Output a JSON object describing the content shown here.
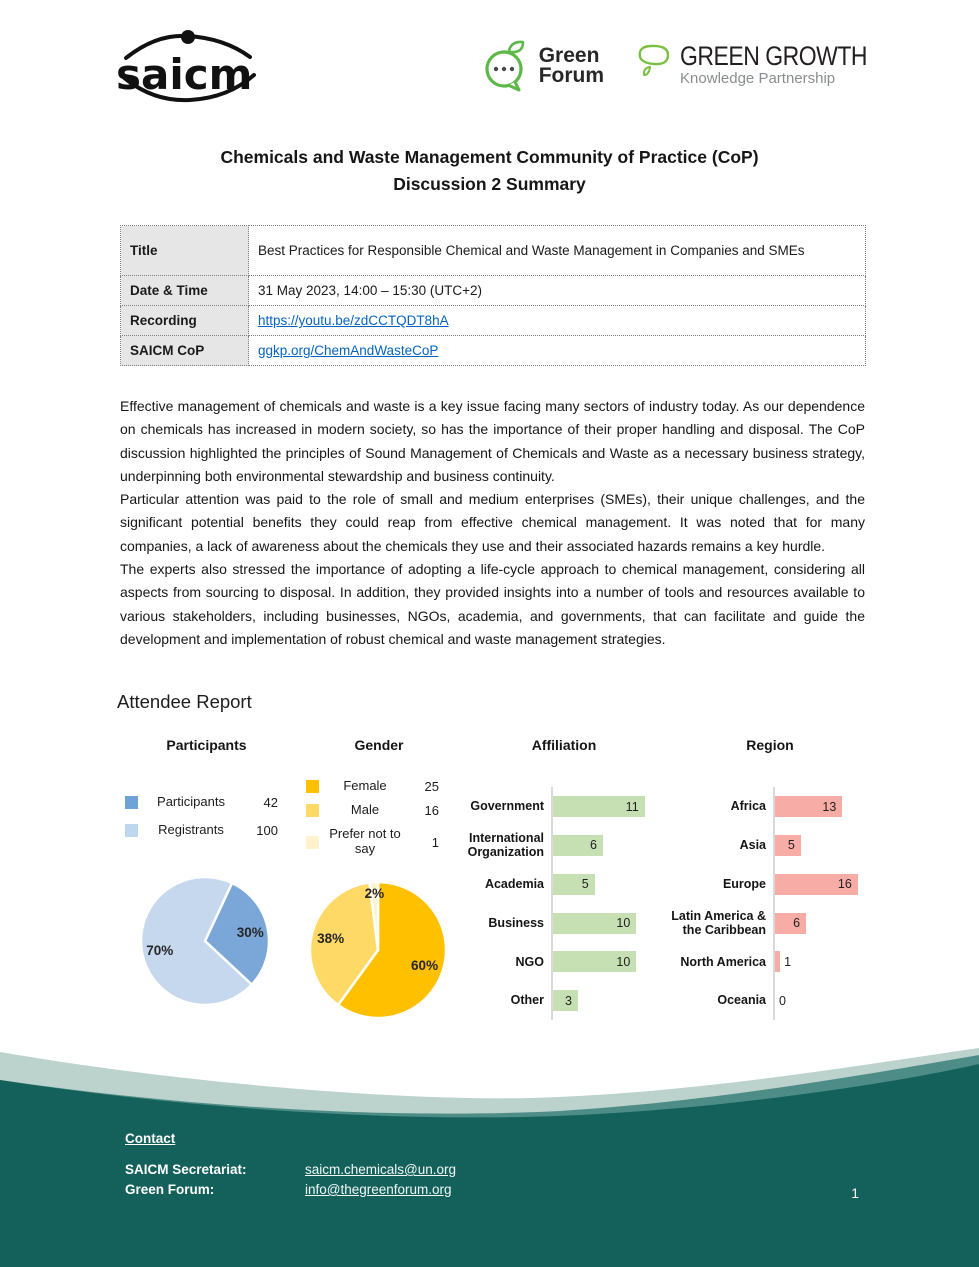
{
  "header": {
    "logos": {
      "saicm": "saicm",
      "green_forum_line1": "Green",
      "green_forum_line2": "Forum",
      "ggkp_title": "GREEN GROWTH",
      "ggkp_subtitle": "Knowledge Partnership"
    }
  },
  "title": {
    "line1": "Chemicals and Waste Management Community of Practice (CoP)",
    "line2": "Discussion 2 Summary"
  },
  "info_table": {
    "rows": [
      {
        "label": "Title",
        "value": "Best Practices for Responsible Chemical and Waste Management in Companies and SMEs"
      },
      {
        "label": "Date & Time",
        "value": "31 May 2023, 14:00 – 15:30 (UTC+2)"
      },
      {
        "label": "Recording",
        "value": "https://youtu.be/zdCCTQDT8hA"
      },
      {
        "label": "SAICM CoP",
        "value": "ggkp.org/ChemAndWasteCoP"
      }
    ]
  },
  "body": {
    "paragraphs": [
      "Effective management of chemicals and waste is a key issue facing many sectors of industry today. As our dependence on chemicals has increased in modern society, so has the importance of their proper handling and disposal. The CoP discussion highlighted the principles of Sound Management of Chemicals and Waste as a necessary business strategy, underpinning both environmental stewardship and business continuity.",
      "Particular attention was paid to the role of small and medium enterprises (SMEs), their unique challenges, and the significant potential benefits they could reap from effective chemical management. It was noted that for many companies, a lack of awareness about the chemicals they use and their associated hazards remains a key hurdle.",
      "The experts also stressed the importance of adopting a life-cycle approach to chemical management, considering all aspects from sourcing to disposal. In addition, they provided insights into a number of tools and resources available to various stakeholders, including businesses, NGOs, academia, and governments, that can facilitate and guide the development and implementation of robust chemical and waste management strategies."
    ]
  },
  "attendee_report": {
    "heading": "Attendee Report"
  },
  "chart_data": [
    {
      "type": "pie",
      "title": "Participants",
      "legend": [
        {
          "label": "Participants",
          "value": 42,
          "color": "#6fa3d8"
        },
        {
          "label": "Registrants",
          "value": 100,
          "color": "#bdd7ee"
        }
      ],
      "slices": [
        {
          "label": "30%",
          "pct": 30,
          "color": "#7aa7d8"
        },
        {
          "label": "70%",
          "pct": 70,
          "color": "#c5d8ee"
        }
      ],
      "start_angle": 25
    },
    {
      "type": "pie",
      "title": "Gender",
      "legend": [
        {
          "label": "Female",
          "value": 25,
          "color": "#ffc000"
        },
        {
          "label": "Male",
          "value": 16,
          "color": "#ffd966"
        },
        {
          "label": "Prefer not to say",
          "value": 1,
          "color": "#fff2cc"
        }
      ],
      "slices": [
        {
          "label": "60%",
          "pct": 60,
          "color": "#ffc000"
        },
        {
          "label": "38%",
          "pct": 38,
          "color": "#ffd966"
        },
        {
          "label": "2%",
          "pct": 2,
          "color": "#fff2cc"
        }
      ],
      "start_angle": 0
    },
    {
      "type": "bar",
      "title": "Affiliation",
      "color": "#c6e0b4",
      "axis_max": 12,
      "categories": [
        "Government",
        "International Organization",
        "Academia",
        "Business",
        "NGO",
        "Other"
      ],
      "values": [
        11,
        6,
        5,
        10,
        10,
        3
      ]
    },
    {
      "type": "bar",
      "title": "Region",
      "color": "#f8aca6",
      "axis_max": 17,
      "categories": [
        "Africa",
        "Asia",
        "Europe",
        "Latin America & the Caribbean",
        "North America",
        "Oceania"
      ],
      "values": [
        13,
        5,
        16,
        6,
        1,
        0
      ]
    }
  ],
  "footer": {
    "contact_heading": "Contact",
    "rows": [
      {
        "label": "SAICM Secretariat:",
        "link": "saicm.chemicals@un.org"
      },
      {
        "label": "Green Forum:",
        "link": "info@thegreenforum.org"
      }
    ],
    "page_number": "1",
    "colors": {
      "light": "#bcd2cc",
      "mid": "#4e8d87",
      "dark": "#14615c"
    }
  }
}
